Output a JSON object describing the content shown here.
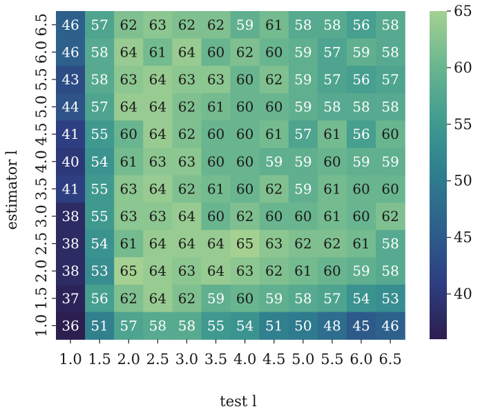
{
  "chart_data": {
    "type": "heatmap",
    "xlabel": "test l",
    "ylabel": "estimator l",
    "x_categories": [
      "1.0",
      "1.5",
      "2.0",
      "2.5",
      "3.0",
      "3.5",
      "4.0",
      "4.5",
      "5.0",
      "5.5",
      "6.0",
      "6.5"
    ],
    "y_categories": [
      "6.5",
      "6.0",
      "5.5",
      "5.0",
      "4.5",
      "4.0",
      "3.5",
      "3.0",
      "2.5",
      "2.0",
      "1.5",
      "1.0"
    ],
    "values": [
      [
        46,
        57,
        62,
        63,
        62,
        62,
        59,
        61,
        58,
        58,
        56,
        58
      ],
      [
        46,
        58,
        64,
        61,
        64,
        60,
        62,
        60,
        59,
        57,
        59,
        58
      ],
      [
        43,
        58,
        63,
        64,
        63,
        63,
        60,
        62,
        59,
        57,
        56,
        57
      ],
      [
        44,
        57,
        64,
        64,
        62,
        61,
        60,
        60,
        59,
        58,
        58,
        58
      ],
      [
        41,
        55,
        60,
        64,
        62,
        60,
        60,
        61,
        57,
        61,
        56,
        60
      ],
      [
        40,
        54,
        61,
        63,
        63,
        60,
        60,
        59,
        59,
        60,
        59,
        59
      ],
      [
        41,
        55,
        63,
        64,
        62,
        61,
        60,
        62,
        59,
        61,
        60,
        60
      ],
      [
        38,
        55,
        63,
        63,
        64,
        60,
        62,
        60,
        60,
        61,
        60,
        62
      ],
      [
        38,
        54,
        61,
        64,
        64,
        64,
        65,
        63,
        62,
        62,
        61,
        58
      ],
      [
        38,
        53,
        65,
        64,
        63,
        64,
        63,
        62,
        61,
        60,
        59,
        58
      ],
      [
        37,
        56,
        62,
        64,
        62,
        59,
        60,
        59,
        58,
        57,
        54,
        53
      ],
      [
        36,
        51,
        57,
        58,
        58,
        55,
        54,
        51,
        50,
        48,
        45,
        46
      ]
    ],
    "colorbar": {
      "min": 36,
      "max": 65,
      "ticks": [
        40,
        45,
        50,
        55,
        60,
        65
      ],
      "colormap": "crest",
      "colors": [
        "#2c1e4f",
        "#2d3d81",
        "#2d5f8c",
        "#2e7d8e",
        "#409b8f",
        "#6ab68f",
        "#a4d191"
      ]
    },
    "annotation_text_dark": "#1a1a1a",
    "annotation_text_light": "#ffffff"
  }
}
